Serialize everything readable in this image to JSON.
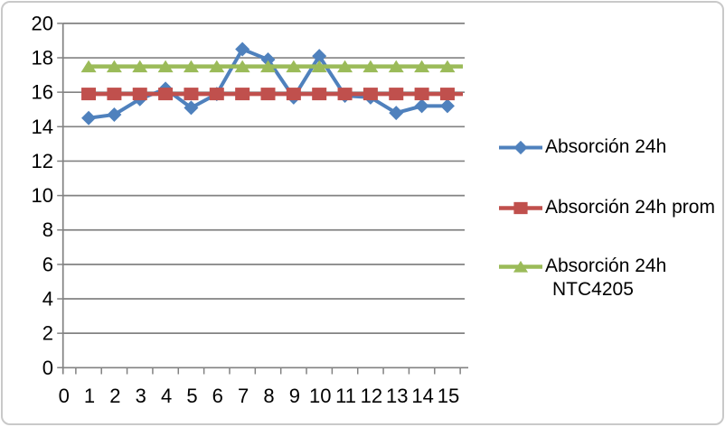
{
  "chart_data": {
    "type": "line",
    "title": "",
    "xlabel": "",
    "ylabel": "",
    "x": [
      1,
      2,
      3,
      4,
      5,
      6,
      7,
      8,
      9,
      10,
      11,
      12,
      13,
      14,
      15
    ],
    "series": [
      {
        "name": "Absorción 24h",
        "values": [
          14.5,
          14.7,
          15.6,
          16.2,
          15.1,
          15.9,
          18.5,
          17.9,
          15.7,
          18.1,
          15.8,
          15.7,
          14.8,
          15.2,
          15.2
        ],
        "color": "#4F81BD",
        "marker": "diamond",
        "line_width": 4,
        "extend_right": false
      },
      {
        "name": "Absorción 24h prom",
        "values": [
          15.9,
          15.9,
          15.9,
          15.9,
          15.9,
          15.9,
          15.9,
          15.9,
          15.9,
          15.9,
          15.9,
          15.9,
          15.9,
          15.9,
          15.9
        ],
        "color": "#C0504D",
        "marker": "square",
        "line_width": 4.5,
        "extend_right": true
      },
      {
        "name": "Absorción 24h NTC4205",
        "values": [
          17.5,
          17.5,
          17.5,
          17.5,
          17.5,
          17.5,
          17.5,
          17.5,
          17.5,
          17.5,
          17.5,
          17.5,
          17.5,
          17.5,
          17.5
        ],
        "color": "#9BBB59",
        "marker": "triangle",
        "line_width": 4.5,
        "extend_right": true
      }
    ],
    "legend": {
      "position": "right",
      "items": [
        {
          "lines": [
            "Absorción 24h"
          ]
        },
        {
          "lines": [
            "Absorción 24h prom"
          ]
        },
        {
          "lines": [
            "Absorción 24h",
            "NTC4205"
          ]
        }
      ]
    },
    "ylim": [
      0,
      20
    ],
    "ytick_step": 2,
    "yticks": [
      0,
      2,
      4,
      6,
      8,
      10,
      12,
      14,
      16,
      18,
      20
    ],
    "ytick_labels": [
      "0",
      "2",
      "4",
      "6",
      "8",
      "10",
      "12",
      "14",
      "16",
      "18",
      "20"
    ],
    "xticks": [
      0,
      1,
      2,
      3,
      4,
      5,
      6,
      7,
      8,
      9,
      10,
      11,
      12,
      13,
      14,
      15
    ],
    "xtick_labels": [
      "0",
      "1",
      "2",
      "3",
      "4",
      "5",
      "6",
      "7",
      "8",
      "9",
      "10",
      "11",
      "12",
      "13",
      "14",
      "15"
    ],
    "grid": "horizontal",
    "axis_color": "#828282",
    "grid_color": "#828282",
    "text_color": "#000000",
    "background": "#FFFFFF",
    "border_color": "#C9C9C9"
  }
}
